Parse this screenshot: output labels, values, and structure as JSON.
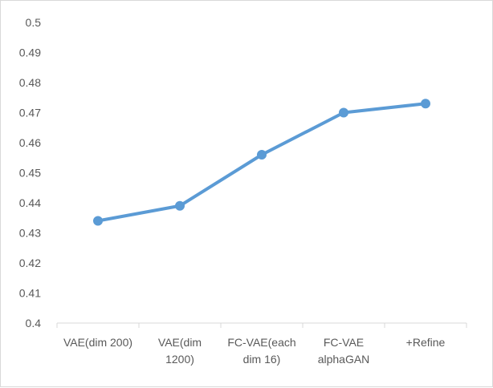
{
  "chart_data": {
    "type": "line",
    "categories": [
      [
        "VAE(dim 200)"
      ],
      [
        "VAE(dim",
        "1200)"
      ],
      [
        "FC-VAE(each",
        "dim 16)"
      ],
      [
        "FC-VAE",
        "alphaGAN"
      ],
      [
        "+Refine"
      ]
    ],
    "series": [
      {
        "values": [
          0.434,
          0.439,
          0.456,
          0.47,
          0.473
        ]
      }
    ],
    "ylim": [
      0.4,
      0.5
    ],
    "yticks": [
      "0.4",
      "0.41",
      "0.42",
      "0.43",
      "0.44",
      "0.45",
      "0.46",
      "0.47",
      "0.48",
      "0.49",
      "0.5"
    ],
    "grid": false,
    "legend": "none",
    "line_color": "#5b9bd5",
    "axis_color": "#d9d9d9",
    "text_color": "#595959"
  }
}
